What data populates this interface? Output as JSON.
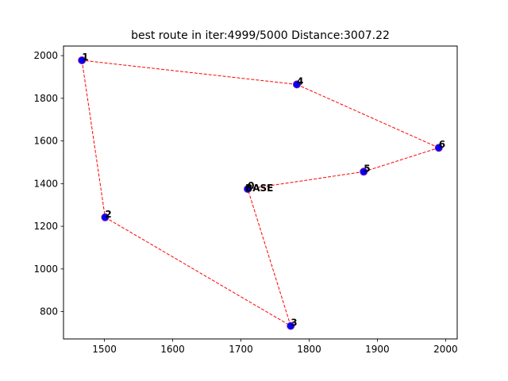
{
  "chart_data": {
    "type": "scatter",
    "title": "best route in iter:4999/5000 Distance:3007.22",
    "xlabel": "",
    "ylabel": "",
    "xlim": [
      1440,
      2017
    ],
    "ylim": [
      672,
      2045
    ],
    "x_ticks": [
      1500,
      1600,
      1700,
      1800,
      1900,
      2000
    ],
    "y_ticks": [
      800,
      1000,
      1200,
      1400,
      1600,
      1800,
      2000
    ],
    "grid": false,
    "marker_color": "#0000ff",
    "marker_edge_color": "#7b1fa2",
    "route_color": "#ff0000",
    "points": [
      {
        "label": "0",
        "x": 1710,
        "y": 1375
      },
      {
        "label": "1",
        "x": 1467,
        "y": 1978
      },
      {
        "label": "2",
        "x": 1501,
        "y": 1242
      },
      {
        "label": "3",
        "x": 1773,
        "y": 733
      },
      {
        "label": "4",
        "x": 1782,
        "y": 1865
      },
      {
        "label": "5",
        "x": 1880,
        "y": 1456
      },
      {
        "label": "6",
        "x": 1990,
        "y": 1568
      }
    ],
    "base_label": {
      "text": "BASE",
      "x": 1710,
      "y": 1375
    },
    "route": [
      0,
      5,
      6,
      4,
      1,
      2,
      3,
      0
    ]
  }
}
